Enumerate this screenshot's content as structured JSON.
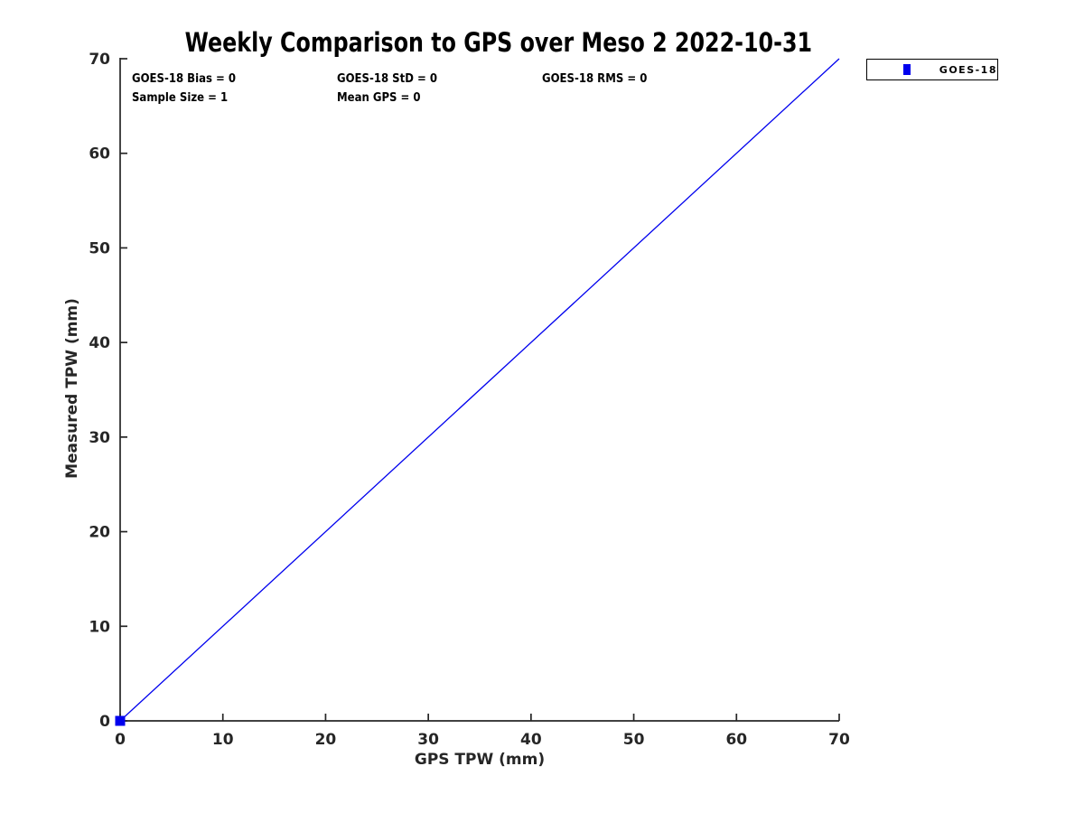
{
  "title": "Weekly Comparison to GPS over Meso 2 2022-10-31",
  "annotations": {
    "bias": "GOES-18 Bias = 0",
    "std": "GOES-18 StD = 0",
    "rms": "GOES-18 RMS = 0",
    "sample_size": "Sample Size = 1",
    "mean_gps": "Mean GPS = 0"
  },
  "legend": {
    "position": "outside-top-right",
    "entries": [
      {
        "label": "GOES-18",
        "marker": "filled-square",
        "color": "#0000ee"
      }
    ]
  },
  "colors": {
    "line": "#0000ee",
    "marker": "#0000ee",
    "axis": "#262626",
    "text": "#000000",
    "background": "#ffffff"
  },
  "chart_data": {
    "type": "line",
    "title": "Weekly Comparison to GPS over Meso 2 2022-10-31",
    "xlabel": "GPS TPW (mm)",
    "ylabel": "Measured TPW (mm)",
    "xlim": [
      0,
      70
    ],
    "ylim": [
      0,
      70
    ],
    "x_ticks": [
      0,
      10,
      20,
      30,
      40,
      50,
      60,
      70
    ],
    "y_ticks": [
      0,
      10,
      20,
      30,
      40,
      50,
      60,
      70
    ],
    "grid": false,
    "tick_direction": "in",
    "spines": [
      "left",
      "bottom"
    ],
    "legend_position": "outside-top-right",
    "series": [
      {
        "name": "reference-line",
        "type": "line",
        "color": "#0000ee",
        "width": 1.3,
        "x": [
          0,
          70
        ],
        "y": [
          0,
          70
        ]
      },
      {
        "name": "GOES-18",
        "type": "scatter",
        "marker": "square",
        "color": "#0000ee",
        "size": 11,
        "x": [
          0
        ],
        "y": [
          0
        ]
      }
    ],
    "stats": {
      "goes18_bias": 0,
      "goes18_std": 0,
      "goes18_rms": 0,
      "sample_size": 1,
      "mean_gps": 0
    }
  }
}
